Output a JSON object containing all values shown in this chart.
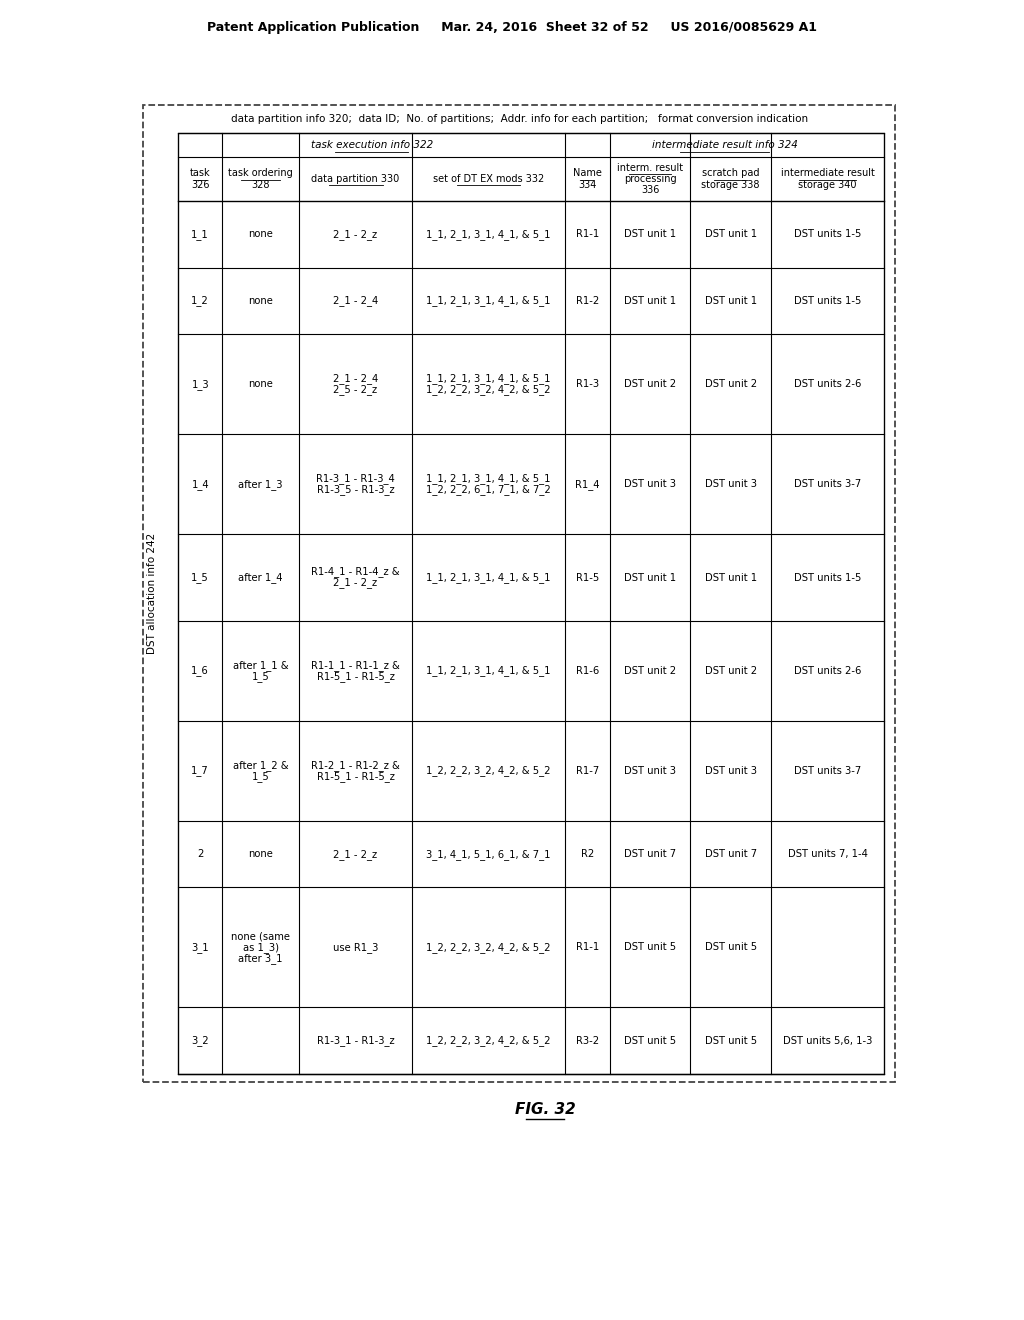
{
  "header": "Patent Application Publication     Mar. 24, 2016  Sheet 32 of 52     US 2016/0085629 A1",
  "figure_label": "FIG. 32",
  "top_label": "data partition info 320;  data ID;  No. of partitions;  Addr. info for each partition;   format conversion indication",
  "dst_label": "DST allocation info 242",
  "task_exec_label": "task execution info 322",
  "interm_result_label": "intermediate result info 324",
  "col_headers": [
    [
      "task",
      "326"
    ],
    [
      "task ordering",
      "328"
    ],
    [
      "data partition 330"
    ],
    [
      "set of DT EX mods 332"
    ],
    [
      "Name",
      "334"
    ],
    [
      "interm. result",
      "processing",
      "336"
    ],
    [
      "scratch pad",
      "storage 338"
    ],
    [
      "intermediate result",
      "storage 340"
    ]
  ],
  "col_props": [
    0.055,
    0.095,
    0.14,
    0.19,
    0.055,
    0.1,
    0.1,
    0.14
  ],
  "rows": [
    [
      "1_1",
      "none",
      "2_1 - 2_z",
      "1_1, 2_1, 3_1, 4_1, & 5_1",
      "R1-1",
      "DST unit 1",
      "DST unit 1",
      "DST units 1-5"
    ],
    [
      "1_2",
      "none",
      "2_1 - 2_4",
      "1_1, 2_1, 3_1, 4_1, & 5_1",
      "R1-2",
      "DST unit 1",
      "DST unit 1",
      "DST units 1-5"
    ],
    [
      "1_3",
      "none",
      "2_1 - 2_4\n2_5 - 2_z",
      "1_1, 2_1, 3_1, 4_1, & 5_1\n1_2, 2_2, 3_2, 4_2, & 5_2",
      "R1-3",
      "DST unit 2",
      "DST unit 2",
      "DST units 2-6"
    ],
    [
      "1_4",
      "after 1_3",
      "R1-3_1 - R1-3_4\nR1-3_5 - R1-3_z",
      "1_1, 2_1, 3_1, 4_1, & 5_1\n1_2, 2_2, 6_1, 7_1, & 7_2",
      "R1_4",
      "DST unit 3",
      "DST unit 3",
      "DST units 3-7"
    ],
    [
      "1_5",
      "after 1_4",
      "R1-4_1 - R1-4_z &\n2_1 - 2_z",
      "1_1, 2_1, 3_1, 4_1, & 5_1",
      "R1-5",
      "DST unit 1",
      "DST unit 1",
      "DST units 1-5"
    ],
    [
      "1_6",
      "after 1_1 &\n1_5",
      "R1-1_1 - R1-1_z &\nR1-5_1 - R1-5_z",
      "1_1, 2_1, 3_1, 4_1, & 5_1",
      "R1-6",
      "DST unit 2",
      "DST unit 2",
      "DST units 2-6"
    ],
    [
      "1_7",
      "after 1_2 &\n1_5",
      "R1-2_1 - R1-2_z &\nR1-5_1 - R1-5_z",
      "1_2, 2_2, 3_2, 4_2, & 5_2",
      "R1-7",
      "DST unit 3",
      "DST unit 3",
      "DST units 3-7"
    ],
    [
      "2",
      "none",
      "2_1 - 2_z",
      "3_1, 4_1, 5_1, 6_1, & 7_1",
      "R2",
      "DST unit 7",
      "DST unit 7",
      "DST units 7, 1-4"
    ],
    [
      "3_1",
      "none (same\nas 1_3)\nafter 3_1",
      "use R1_3",
      "1_2, 2_2, 3_2, 4_2, & 5_2",
      "R1-1",
      "DST unit 5",
      "DST unit 5",
      ""
    ],
    [
      "3_2",
      "",
      "R1-3_1 - R1-3_z",
      "1_2, 2_2, 3_2, 4_2, & 5_2",
      "R3-2",
      "DST unit 5",
      "DST unit 5",
      "DST units 5,6, 1-3"
    ]
  ],
  "row_hprops": [
    1.0,
    1.0,
    1.5,
    1.5,
    1.3,
    1.5,
    1.5,
    1.0,
    1.8,
    1.0
  ]
}
